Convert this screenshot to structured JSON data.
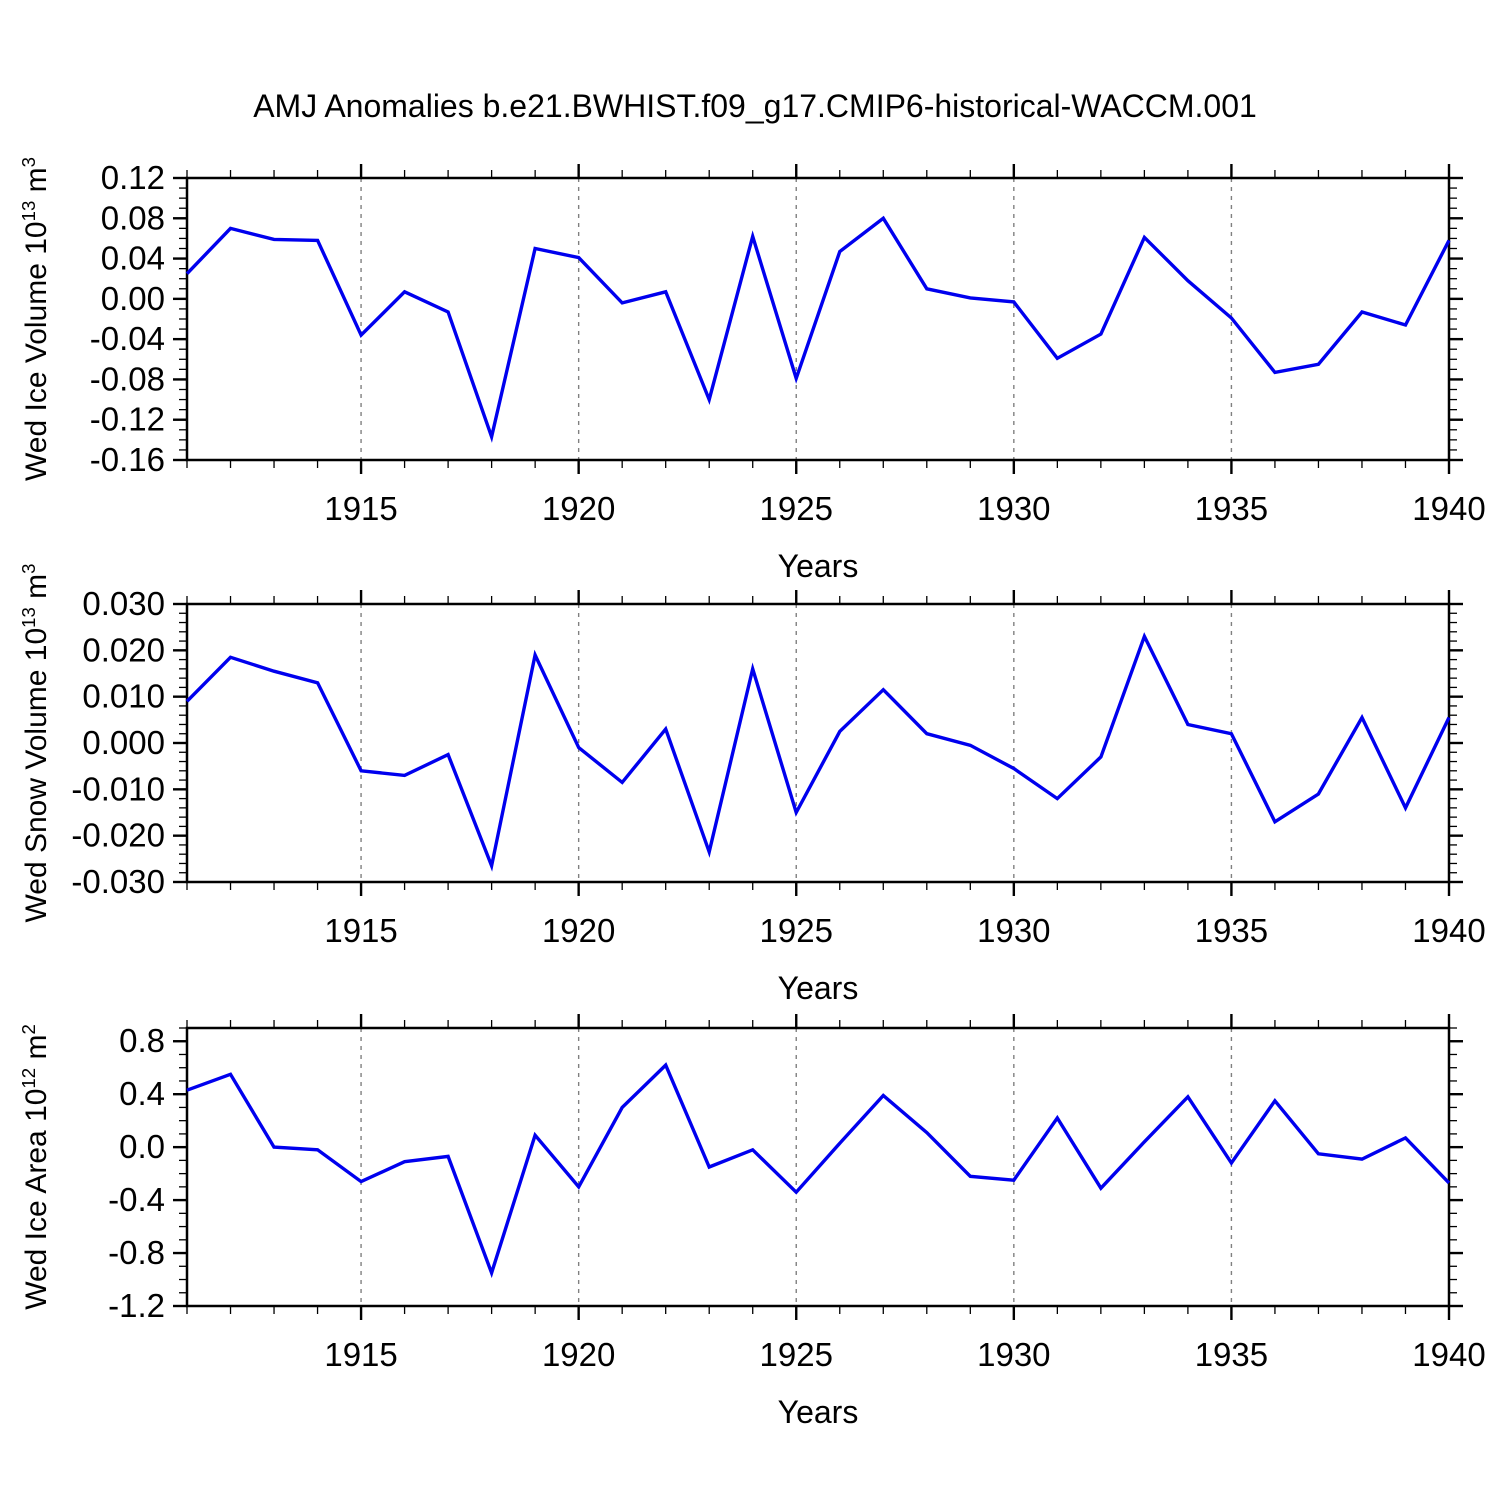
{
  "title": "AMJ Anomalies b.e21.BWHIST.f09_g17.CMIP6-historical-WACCM.001",
  "line_color": "#0000EE",
  "grid_color": "#808080",
  "axis_color": "#000000",
  "chart_data": [
    {
      "type": "line",
      "name": "wed-ice-volume",
      "xlabel": "Years",
      "ylabel": "Wed Ice Volume 10¹³ m³",
      "ylabel_parts": [
        "Wed Ice Volume 10",
        "13",
        " m",
        "3"
      ],
      "x": [
        1911,
        1912,
        1913,
        1914,
        1915,
        1916,
        1917,
        1918,
        1919,
        1920,
        1921,
        1922,
        1923,
        1924,
        1925,
        1926,
        1927,
        1928,
        1929,
        1930,
        1931,
        1932,
        1933,
        1934,
        1935,
        1936,
        1937,
        1938,
        1939,
        1940
      ],
      "values": [
        0.025,
        0.07,
        0.059,
        0.058,
        -0.036,
        0.007,
        -0.013,
        -0.137,
        0.05,
        0.041,
        -0.004,
        0.007,
        -0.1,
        0.062,
        -0.079,
        0.047,
        0.08,
        0.01,
        0.001,
        -0.003,
        -0.059,
        -0.035,
        0.061,
        0.018,
        -0.019,
        -0.073,
        -0.065,
        -0.013,
        -0.026,
        0.058
      ],
      "xlim": [
        1911,
        1940
      ],
      "ylim": [
        -0.16,
        0.12
      ],
      "xticks": [
        1915,
        1920,
        1925,
        1930,
        1935,
        1940
      ],
      "xticklabels": [
        "1915",
        "1920",
        "1925",
        "1930",
        "1935",
        "1940"
      ],
      "x_minor_step": 1,
      "yticks": [
        0.12,
        0.08,
        0.04,
        0.0,
        -0.04,
        -0.08,
        -0.12,
        -0.16
      ],
      "yticklabels": [
        "0.12",
        "0.08",
        "0.04",
        "0.00",
        "-0.04",
        "-0.08",
        "-0.12",
        "-0.16"
      ],
      "y_minor_step": 0.01,
      "vlines": [
        1915,
        1920,
        1925,
        1930,
        1935
      ],
      "grid": "vertical-dashed",
      "legend": "none"
    },
    {
      "type": "line",
      "name": "wed-snow-volume",
      "xlabel": "Years",
      "ylabel": "Wed Snow Volume 10¹³ m³",
      "ylabel_parts": [
        "Wed Snow Volume 10",
        "13",
        " m",
        "3"
      ],
      "x": [
        1911,
        1912,
        1913,
        1914,
        1915,
        1916,
        1917,
        1918,
        1919,
        1920,
        1921,
        1922,
        1923,
        1924,
        1925,
        1926,
        1927,
        1928,
        1929,
        1930,
        1931,
        1932,
        1933,
        1934,
        1935,
        1936,
        1937,
        1938,
        1939,
        1940
      ],
      "values": [
        0.009,
        0.0185,
        0.0155,
        0.013,
        -0.006,
        -0.007,
        -0.0025,
        -0.0265,
        0.019,
        -0.001,
        -0.0085,
        0.003,
        -0.0235,
        0.016,
        -0.015,
        0.0025,
        0.0115,
        0.002,
        -0.0005,
        -0.0055,
        -0.012,
        -0.003,
        0.023,
        0.004,
        0.002,
        -0.017,
        -0.011,
        0.0055,
        -0.014,
        0.0055
      ],
      "xlim": [
        1911,
        1940
      ],
      "ylim": [
        -0.03,
        0.03
      ],
      "xticks": [
        1915,
        1920,
        1925,
        1930,
        1935,
        1940
      ],
      "xticklabels": [
        "1915",
        "1920",
        "1925",
        "1930",
        "1935",
        "1940"
      ],
      "x_minor_step": 1,
      "yticks": [
        0.03,
        0.02,
        0.01,
        0.0,
        -0.01,
        -0.02,
        -0.03
      ],
      "yticklabels": [
        "0.030",
        "0.020",
        "0.010",
        "0.000",
        "-0.010",
        "-0.020",
        "-0.030"
      ],
      "y_minor_step": 0.002,
      "vlines": [
        1915,
        1920,
        1925,
        1930,
        1935
      ],
      "grid": "vertical-dashed",
      "legend": "none"
    },
    {
      "type": "line",
      "name": "wed-ice-area",
      "xlabel": "Years",
      "ylabel": "Wed Ice Area 10¹² m²",
      "ylabel_parts": [
        "Wed Ice Area 10",
        "12",
        " m",
        "2"
      ],
      "x": [
        1911,
        1912,
        1913,
        1914,
        1915,
        1916,
        1917,
        1918,
        1919,
        1920,
        1921,
        1922,
        1923,
        1924,
        1925,
        1926,
        1927,
        1928,
        1929,
        1930,
        1931,
        1932,
        1933,
        1934,
        1935,
        1936,
        1937,
        1938,
        1939,
        1940
      ],
      "values": [
        0.43,
        0.55,
        0.0,
        -0.02,
        -0.26,
        -0.11,
        -0.07,
        -0.95,
        0.09,
        -0.3,
        0.3,
        0.62,
        -0.15,
        -0.02,
        -0.34,
        0.03,
        0.39,
        0.11,
        -0.22,
        -0.25,
        0.22,
        -0.31,
        0.04,
        0.38,
        -0.12,
        0.35,
        -0.05,
        -0.09,
        0.07,
        -0.27
      ],
      "xlim": [
        1911,
        1940
      ],
      "ylim": [
        -1.2,
        0.9
      ],
      "xticks": [
        1915,
        1920,
        1925,
        1930,
        1935,
        1940
      ],
      "xticklabels": [
        "1915",
        "1920",
        "1925",
        "1930",
        "1935",
        "1940"
      ],
      "x_minor_step": 1,
      "yticks": [
        0.8,
        0.4,
        0.0,
        -0.4,
        -0.8,
        -1.2
      ],
      "yticklabels": [
        "0.8",
        "0.4",
        "0.0",
        "-0.4",
        "-0.8",
        "-1.2"
      ],
      "y_minor_step": 0.1,
      "vlines": [
        1915,
        1920,
        1925,
        1930,
        1935
      ],
      "grid": "vertical-dashed",
      "legend": "none"
    }
  ]
}
